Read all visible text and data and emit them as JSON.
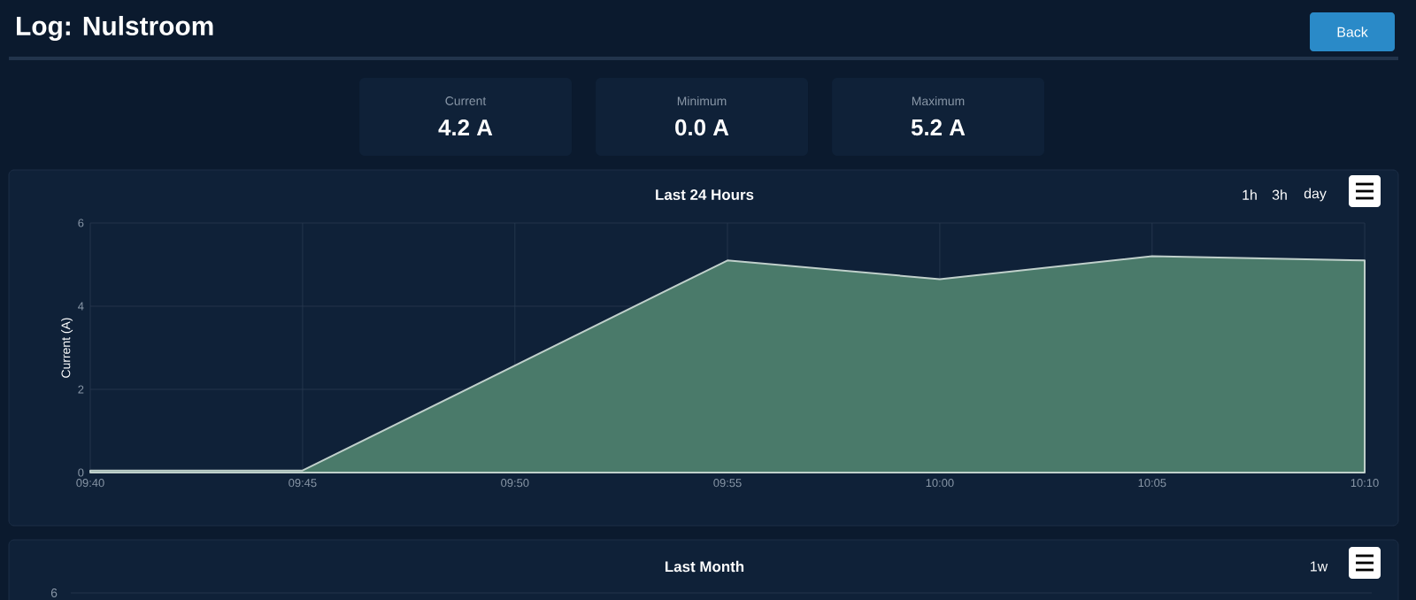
{
  "chart_data": [
    {
      "type": "other",
      "title": "Log: Nulstroom",
      "annotations": [
        "Back",
        "Current",
        "4.2 A",
        "Minimum",
        "0.0 A",
        "Maximum",
        "5.2 A"
      ]
    },
    {
      "type": "area",
      "title": "Last 24 Hours",
      "ylabel": "Current (A)",
      "annotations": [
        "1h",
        "3h",
        "day"
      ],
      "x": [
        9.6667,
        9.75,
        9.9167,
        10.0,
        10.0833,
        10.1667
      ],
      "values": [
        0.05,
        0.05,
        5.1,
        4.65,
        5.2,
        5.1
      ],
      "color": "#4a7a6a",
      "xlim": [
        9.6667,
        10.1667
      ],
      "xticks": [
        {
          "value": 9.6667,
          "label": "09:40"
        },
        {
          "value": 9.75,
          "label": "09:45"
        },
        {
          "value": 9.8333,
          "label": "09:50"
        },
        {
          "value": 9.9167,
          "label": "09:55"
        },
        {
          "value": 10.0,
          "label": "10:00"
        },
        {
          "value": 10.0833,
          "label": "10:05"
        },
        {
          "value": 10.1667,
          "label": "10:10"
        }
      ],
      "ylim": [
        0,
        6
      ],
      "yticks": [
        0,
        2,
        4,
        6
      ],
      "grid": true
    },
    {
      "type": "other",
      "title": "Last Month",
      "annotations": [
        "1w",
        "6"
      ]
    }
  ]
}
